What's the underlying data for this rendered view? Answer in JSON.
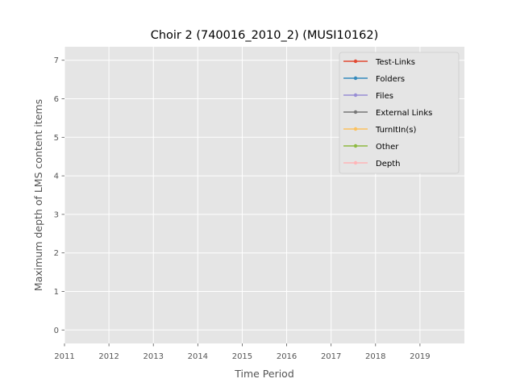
{
  "chart_data": {
    "type": "line",
    "title": "Choir 2 (740016_2010_2) (MUSI10162)",
    "xlabel": "Time Period",
    "ylabel": "Maximum depth of LMS content items",
    "xlim": [
      2011,
      2020
    ],
    "ylim": [
      -0.35,
      7.35
    ],
    "x_ticks": [
      "2011",
      "2012",
      "2013",
      "2014",
      "2015",
      "2016",
      "2017",
      "2018",
      "2019"
    ],
    "y_ticks": [
      "0",
      "1",
      "2",
      "3",
      "4",
      "5",
      "6",
      "7"
    ],
    "grid": true,
    "legend_position": "top-right",
    "series": [
      {
        "name": "Test-Links",
        "color": "#E24A33",
        "x": [],
        "values": []
      },
      {
        "name": "Folders",
        "color": "#348ABD",
        "x": [],
        "values": []
      },
      {
        "name": "Files",
        "color": "#988ED5",
        "x": [],
        "values": []
      },
      {
        "name": "External Links",
        "color": "#777777",
        "x": [],
        "values": []
      },
      {
        "name": "TurnItIn(s)",
        "color": "#FBC15E",
        "x": [],
        "values": []
      },
      {
        "name": "Other",
        "color": "#8EBA42",
        "x": [],
        "values": []
      },
      {
        "name": "Depth",
        "color": "#FFB5B8",
        "x": [],
        "values": []
      }
    ]
  }
}
